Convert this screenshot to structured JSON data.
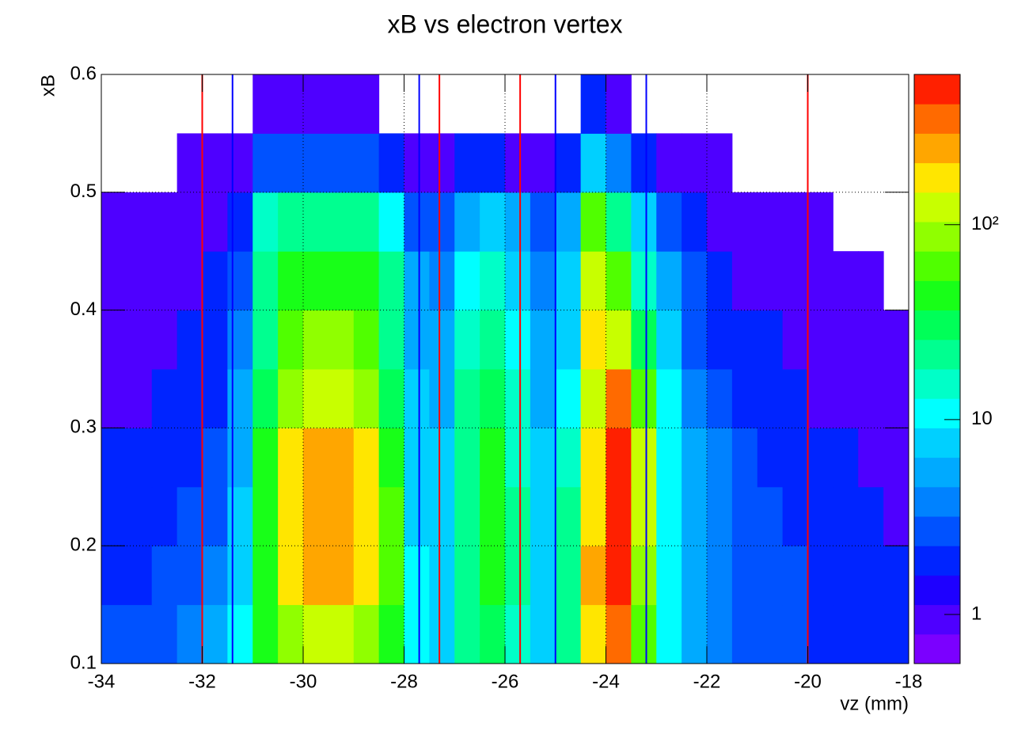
{
  "chart_data": {
    "type": "heatmap",
    "title": "xB vs electron vertex",
    "xlabel": "vz (mm)",
    "ylabel": "xB",
    "xlim": [
      -34,
      -18
    ],
    "ylim": [
      0.1,
      0.6
    ],
    "xticks": [
      -34,
      -32,
      -30,
      -28,
      -26,
      -24,
      -22,
      -20,
      -18
    ],
    "yticks": [
      0.1,
      0.2,
      0.3,
      0.4,
      0.5,
      0.6
    ],
    "grid": true,
    "xbins": [
      -34,
      -33.5,
      -33,
      -32.5,
      -32,
      -31.5,
      -31,
      -30.5,
      -30,
      -29.5,
      -29,
      -28.5,
      -28,
      -27.5,
      -27,
      -26.5,
      -26,
      -25.5,
      -25,
      -24.5,
      -24,
      -23.5,
      -23,
      -22.5,
      -22,
      -21.5,
      -21,
      -20.5,
      -20,
      -19.5,
      -19,
      -18.5,
      -18
    ],
    "ybins": [
      0.1,
      0.15,
      0.2,
      0.25,
      0.3,
      0.35,
      0.4,
      0.45,
      0.5,
      0.55,
      0.6
    ],
    "z": [
      [
        3,
        3,
        3,
        4,
        5,
        10,
        40,
        100,
        120,
        120,
        100,
        40,
        10,
        8,
        20,
        30,
        15,
        8,
        20,
        150,
        300,
        60,
        10,
        5,
        4,
        3,
        3,
        3,
        2,
        2,
        2,
        2
      ],
      [
        2,
        2,
        3,
        3,
        4,
        8,
        50,
        200,
        250,
        250,
        200,
        60,
        10,
        8,
        25,
        40,
        20,
        8,
        25,
        250,
        500,
        100,
        12,
        5,
        4,
        3,
        3,
        3,
        2,
        2,
        2,
        2
      ],
      [
        2,
        2,
        2,
        3,
        3,
        7,
        45,
        200,
        250,
        250,
        200,
        55,
        9,
        7,
        25,
        40,
        20,
        8,
        20,
        200,
        500,
        120,
        12,
        5,
        4,
        3,
        3,
        2,
        2,
        2,
        2,
        1
      ],
      [
        2,
        2,
        2,
        2,
        3,
        6,
        40,
        180,
        250,
        250,
        180,
        50,
        8,
        7,
        25,
        40,
        18,
        7,
        15,
        150,
        450,
        120,
        12,
        5,
        4,
        3,
        2,
        2,
        2,
        2,
        1,
        1
      ],
      [
        1,
        1,
        2,
        2,
        2,
        5,
        30,
        100,
        120,
        120,
        100,
        35,
        7,
        6,
        20,
        30,
        14,
        6,
        12,
        120,
        300,
        60,
        10,
        4,
        3,
        2,
        2,
        2,
        1,
        1,
        1,
        1
      ],
      [
        1,
        1,
        1,
        2,
        2,
        4,
        25,
        60,
        80,
        80,
        60,
        25,
        6,
        5,
        15,
        20,
        10,
        5,
        9,
        150,
        120,
        30,
        7,
        3,
        2,
        2,
        2,
        1,
        1,
        1,
        1,
        1
      ],
      [
        1,
        1,
        1,
        1,
        2,
        3,
        20,
        40,
        50,
        50,
        40,
        20,
        5,
        4,
        10,
        15,
        8,
        4,
        7,
        120,
        60,
        15,
        5,
        3,
        2,
        1,
        1,
        1,
        1,
        1,
        1,
        0
      ],
      [
        1,
        1,
        1,
        1,
        1,
        2,
        15,
        25,
        25,
        25,
        20,
        10,
        3,
        3,
        6,
        8,
        5,
        3,
        5,
        60,
        25,
        8,
        3,
        2,
        1,
        1,
        1,
        1,
        1,
        0,
        0,
        0
      ],
      [
        0,
        0,
        0,
        1,
        1,
        1,
        3,
        3,
        3,
        3,
        3,
        2,
        1,
        1,
        2,
        2,
        1,
        1,
        2,
        8,
        4,
        2,
        1,
        1,
        1,
        0,
        0,
        0,
        0,
        0,
        0,
        0
      ],
      [
        0,
        0,
        0,
        0,
        0,
        0,
        1,
        1,
        1,
        1,
        1,
        0,
        0,
        0,
        0,
        0,
        0,
        0,
        0,
        2,
        1,
        0,
        0,
        0,
        0,
        0,
        0,
        0,
        0,
        0,
        0,
        0
      ]
    ],
    "zlim": [
      0.56,
      590
    ],
    "zlog": true,
    "zticks": [
      1,
      10,
      {
        "value": 100,
        "label": "10²"
      }
    ],
    "colormap": [
      "#7b00ff",
      "#4e00ff",
      "#1e00ff",
      "#0024ff",
      "#0052ff",
      "#0082ff",
      "#00aaff",
      "#00d0ff",
      "#00ffff",
      "#00ffc8",
      "#00ff90",
      "#00ff58",
      "#18ff18",
      "#50ff00",
      "#90ff00",
      "#c8ff00",
      "#ffe600",
      "#ffa600",
      "#ff6a00",
      "#ff2000"
    ],
    "lines": [
      {
        "x": -32,
        "color": "#ff0000"
      },
      {
        "x": -31.4,
        "color": "#0000ff"
      },
      {
        "x": -27.7,
        "color": "#0000ff"
      },
      {
        "x": -27.3,
        "color": "#ff0000"
      },
      {
        "x": -25.7,
        "color": "#ff0000"
      },
      {
        "x": -25,
        "color": "#0000ff"
      },
      {
        "x": -23.2,
        "color": "#0000ff"
      },
      {
        "x": -20,
        "color": "#ff0000"
      }
    ]
  }
}
